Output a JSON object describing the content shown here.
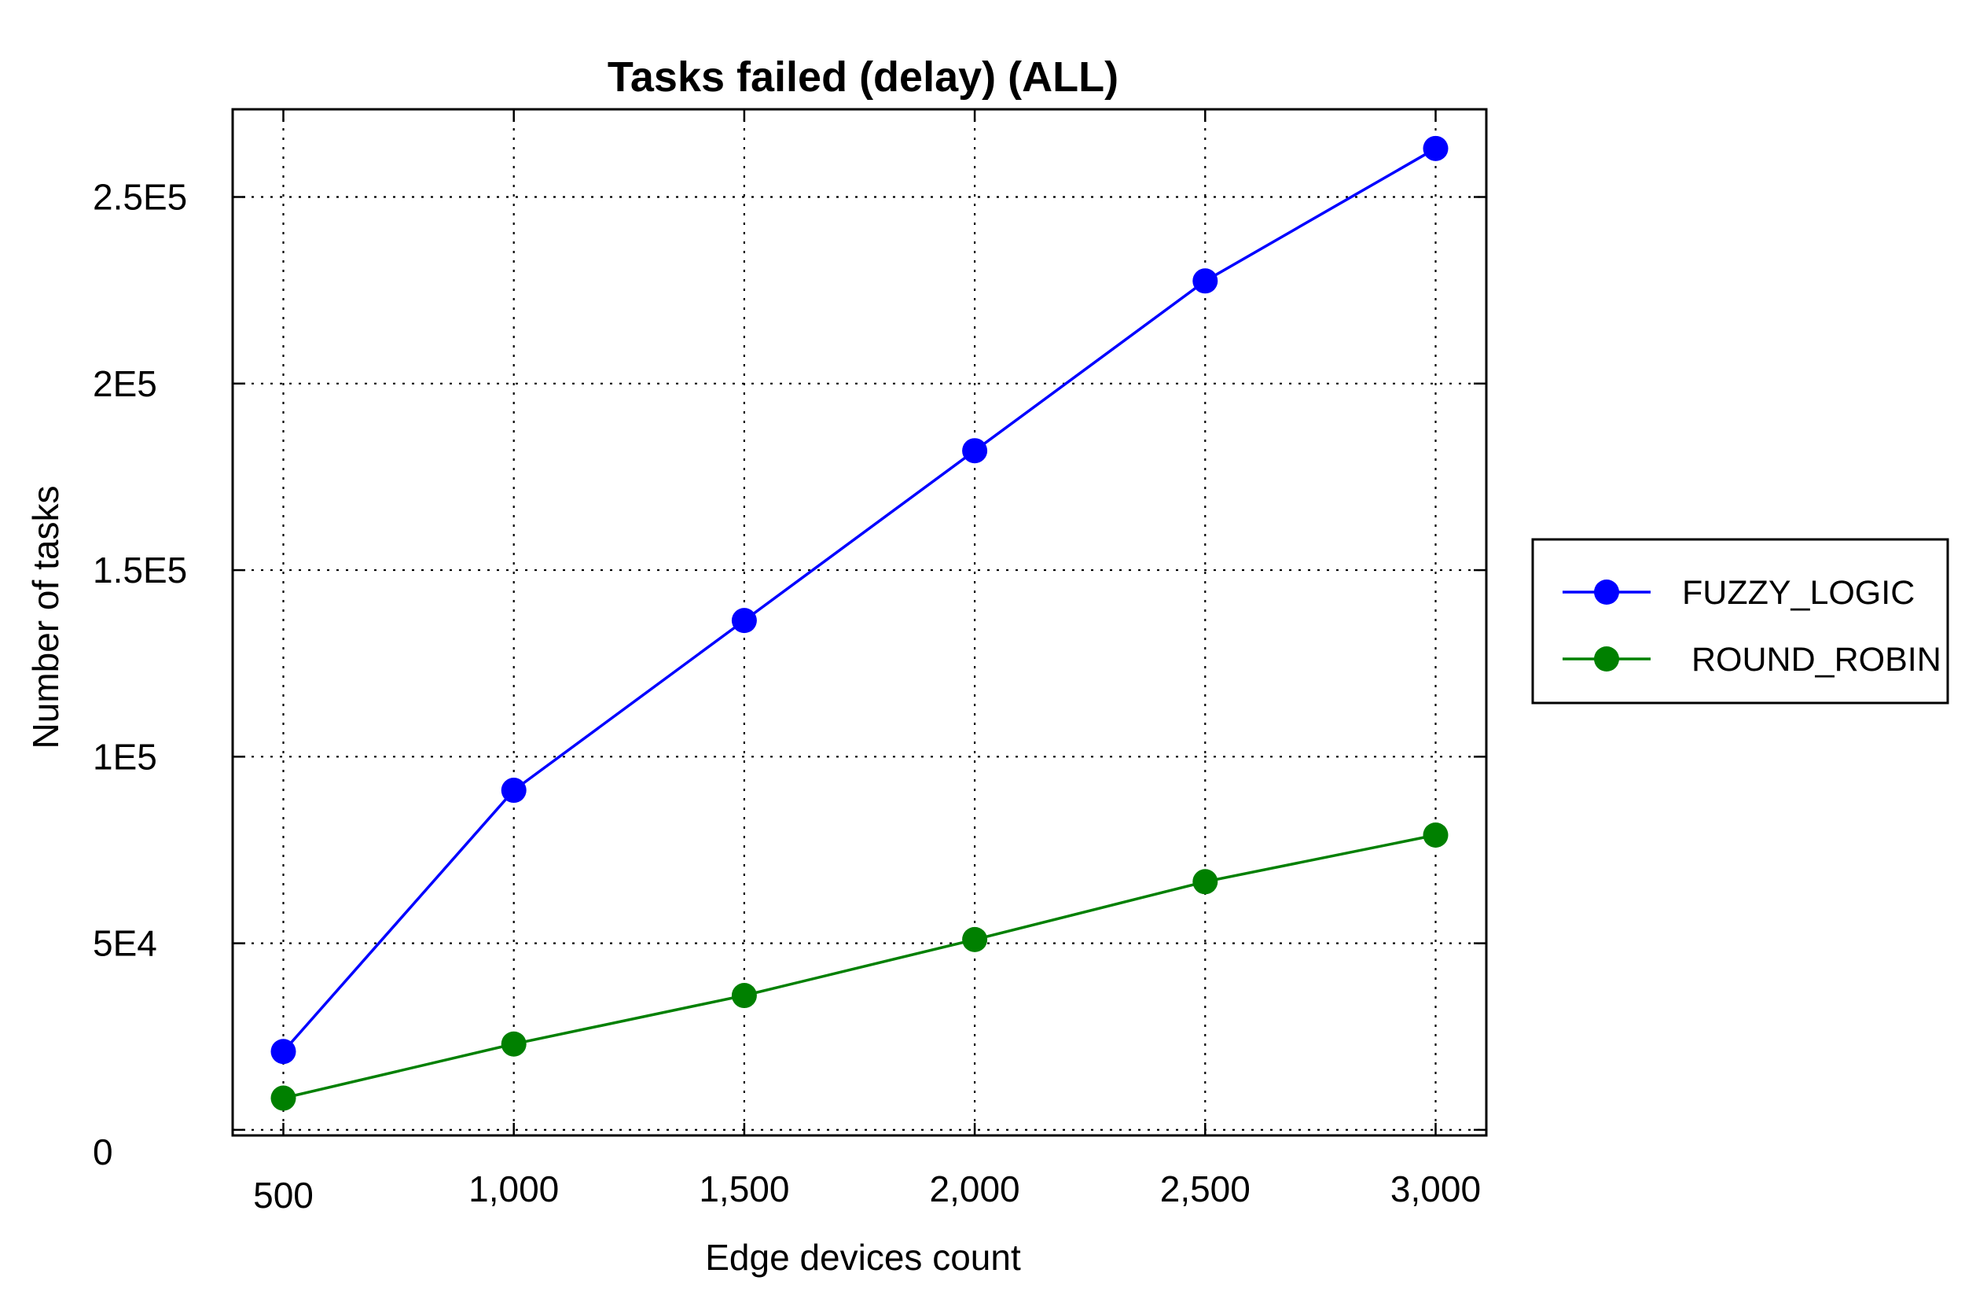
{
  "chart_data": {
    "type": "line",
    "title": "Tasks failed (delay) (ALL)",
    "xlabel": "Edge devices count",
    "ylabel": "Number of tasks",
    "x": [
      500,
      1000,
      1500,
      2000,
      2500,
      3000
    ],
    "x_tick_labels": [
      "500",
      "1,000",
      "1,500",
      "2,000",
      "2,500",
      "3,000"
    ],
    "y_ticks": [
      0,
      50000,
      100000,
      150000,
      200000,
      250000
    ],
    "y_tick_labels": [
      "0",
      "5E4",
      "1E5",
      "1.5E5",
      "2E5",
      "2.5E5"
    ],
    "xlim": [
      390,
      3110
    ],
    "ylim": [
      -1500,
      273500
    ],
    "grid": true,
    "legend_position": "right",
    "series": [
      {
        "name": "FUZZY_LOGIC",
        "color": "#0000ff",
        "values": [
          21000,
          91000,
          136500,
          182000,
          227500,
          263000
        ]
      },
      {
        "name": "ROUND_ROBIN",
        "color": "#008000",
        "values": [
          8500,
          23000,
          36000,
          51000,
          66500,
          79000
        ]
      }
    ]
  }
}
